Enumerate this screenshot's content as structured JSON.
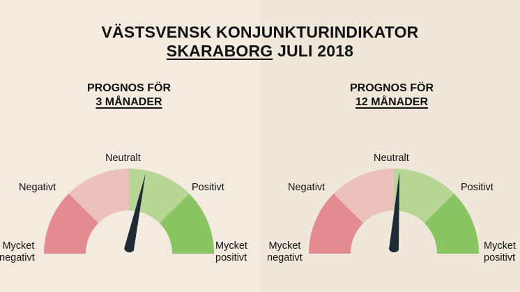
{
  "header": {
    "title_line1": "VÄSTSVENSK KONJUNKTURINDIKATOR",
    "title_region": "SKARABORG",
    "title_period": " JULI 2018"
  },
  "chart_data": [
    {
      "type": "gauge",
      "subtitle_line1": "PROGNOS FÖR",
      "subtitle_line2": "3 MÅNADER",
      "segments": [
        "Mycket negativt",
        "Negativt",
        "Neutralt",
        "Positivt",
        "Mycket positivt"
      ],
      "labels": {
        "very_negative_1": "Mycket",
        "very_negative_2": "negativt",
        "negative": "Negativt",
        "neutral": "Neutralt",
        "positive": "Positivt",
        "very_positive_1": "Mycket",
        "very_positive_2": "positivt"
      },
      "value": 0.565,
      "range": [
        0,
        1
      ],
      "colors": [
        "#e48b92",
        "#ecc1bd",
        "#b7d595",
        "#8bc462"
      ]
    },
    {
      "type": "gauge",
      "subtitle_line1": "PROGNOS FÖR",
      "subtitle_line2": "12 MÅNADER",
      "segments": [
        "Mycket negativt",
        "Negativt",
        "Neutralt",
        "Positivt",
        "Mycket positivt"
      ],
      "labels": {
        "very_negative_1": "Mycket",
        "very_negative_2": "negativt",
        "negative": "Negativt",
        "neutral": "Neutralt",
        "positive": "Positivt",
        "very_positive_1": "Mycket",
        "very_positive_2": "positivt"
      },
      "value": 0.522,
      "range": [
        0,
        1
      ],
      "colors": [
        "#e48b92",
        "#ecc1bd",
        "#b7d595",
        "#8bc462"
      ]
    }
  ]
}
